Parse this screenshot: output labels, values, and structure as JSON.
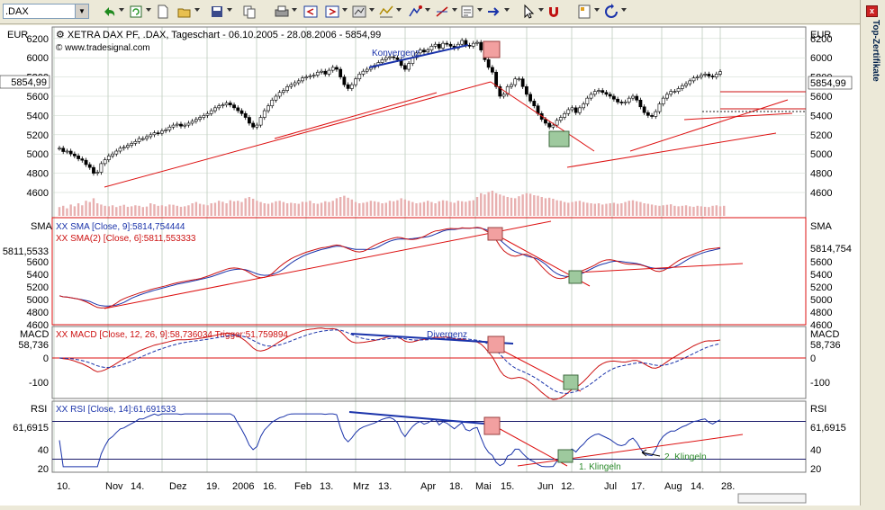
{
  "toolbar": {
    "symbol_value": ".DAX",
    "buttons": [
      "undo-icon",
      "refresh-icon",
      "new-icon",
      "open-icon",
      "save-icon",
      "copy-icon",
      "print-icon",
      "bar-prev-icon",
      "bar-next-icon",
      "chart-type-icon",
      "indicator-icon",
      "drawing-icon",
      "trendline-icon",
      "properties-icon",
      "arrow-icon",
      "cursor-icon",
      "magnet-icon",
      "template-icon",
      "redo-icon"
    ]
  },
  "side_panel": {
    "label": "Top-Zertifikate",
    "close_label": "x"
  },
  "colors": {
    "price": "#000000",
    "up_candle": "#ffffff",
    "down_candle": "#000000",
    "trend": "#dd1111",
    "blue_line": "#1a33aa",
    "grid": "#c8d4c8",
    "sell_marker": "#f2a0a0",
    "buy_marker": "#9ec99e",
    "volume": "#e8b0b0"
  },
  "chart_data": [
    {
      "type": "candlestick",
      "title": "XETRA DAX PF, .DAX, Tageschart - 06.10.2005 - 28.08.2006 - 5854,99",
      "source": "© www.tradesignal.com",
      "unit": "EUR",
      "ylim": [
        4550,
        6330
      ],
      "y_ticks": [
        4600,
        4800,
        5000,
        5200,
        5400,
        5600,
        5800,
        6000,
        6200
      ],
      "last_value_label": "5854,99",
      "last_value": 5854.99,
      "x_labels": [
        "10.",
        "Nov",
        "14.",
        "Dez",
        "19.",
        "2006",
        "16.",
        "Feb",
        "13.",
        "Mrz",
        "13.",
        "Apr",
        "18.",
        "Mai",
        "15.",
        "Jun",
        "12.",
        "Jul",
        "17.",
        "Aug",
        "14.",
        "28."
      ],
      "closes": [
        5060,
        5025,
        5030,
        5000,
        4980,
        4950,
        4935,
        4890,
        4860,
        4800,
        4810,
        4900,
        4940,
        4980,
        5000,
        5030,
        5060,
        5070,
        5090,
        5110,
        5130,
        5160,
        5160,
        5180,
        5200,
        5220,
        5215,
        5240,
        5250,
        5280,
        5300,
        5310,
        5290,
        5300,
        5320,
        5340,
        5360,
        5380,
        5400,
        5420,
        5450,
        5480,
        5500,
        5510,
        5530,
        5510,
        5480,
        5450,
        5420,
        5380,
        5320,
        5280,
        5300,
        5380,
        5450,
        5500,
        5560,
        5600,
        5640,
        5660,
        5700,
        5720,
        5740,
        5760,
        5790,
        5800,
        5810,
        5820,
        5850,
        5860,
        5830,
        5870,
        5900,
        5880,
        5800,
        5720,
        5680,
        5720,
        5780,
        5830,
        5860,
        5880,
        5900,
        5920,
        5950,
        5980,
        6000,
        6010,
        6000,
        5980,
        5920,
        5880,
        5940,
        6000,
        6050,
        6080,
        6060,
        6080,
        6120,
        6140,
        6100,
        6150,
        6140,
        6120,
        6100,
        6140,
        6180,
        6130,
        6120,
        6150,
        6160,
        6080,
        5980,
        5900,
        5850,
        5700,
        5600,
        5620,
        5700,
        5720,
        5780,
        5780,
        5700,
        5620,
        5550,
        5500,
        5420,
        5360,
        5320,
        5280,
        5300,
        5350,
        5380,
        5420,
        5460,
        5480,
        5430,
        5480,
        5520,
        5580,
        5620,
        5650,
        5660,
        5640,
        5620,
        5600,
        5570,
        5540,
        5530,
        5540,
        5580,
        5600,
        5560,
        5490,
        5430,
        5400,
        5390,
        5440,
        5520,
        5580,
        5620,
        5650,
        5650,
        5680,
        5710,
        5730,
        5760,
        5790,
        5800,
        5820,
        5830,
        5810,
        5800,
        5830,
        5855
      ],
      "volumes": [
        0.35,
        0.4,
        0.3,
        0.45,
        0.38,
        0.5,
        0.42,
        0.6,
        0.55,
        0.7,
        0.5,
        0.45,
        0.4,
        0.38,
        0.42,
        0.35,
        0.4,
        0.44,
        0.36,
        0.38,
        0.42,
        0.4,
        0.35,
        0.37,
        0.5,
        0.46,
        0.4,
        0.42,
        0.38,
        0.45,
        0.44,
        0.4,
        0.36,
        0.38,
        0.42,
        0.5,
        0.55,
        0.48,
        0.45,
        0.42,
        0.5,
        0.52,
        0.6,
        0.56,
        0.5,
        0.62,
        0.58,
        0.6,
        0.55,
        0.7,
        0.75,
        0.68,
        0.6,
        0.55,
        0.5,
        0.48,
        0.52,
        0.58,
        0.6,
        0.55,
        0.5,
        0.52,
        0.5,
        0.48,
        0.56,
        0.55,
        0.6,
        0.5,
        0.48,
        0.52,
        0.58,
        0.55,
        0.6,
        0.7,
        0.75,
        0.8,
        0.72,
        0.65,
        0.55,
        0.5,
        0.52,
        0.55,
        0.6,
        0.58,
        0.55,
        0.5,
        0.52,
        0.6,
        0.58,
        0.62,
        0.7,
        0.65,
        0.6,
        0.55,
        0.5,
        0.52,
        0.55,
        0.6,
        0.55,
        0.5,
        0.58,
        0.62,
        0.6,
        0.55,
        0.52,
        0.6,
        0.58,
        0.56,
        0.6,
        0.62,
        0.75,
        0.9,
        0.85,
        0.95,
        1.0,
        0.9,
        0.85,
        0.8,
        0.75,
        0.72,
        0.7,
        0.78,
        0.85,
        0.9,
        0.88,
        0.82,
        0.8,
        0.75,
        0.7,
        0.72,
        0.68,
        0.62,
        0.6,
        0.55,
        0.52,
        0.55,
        0.58,
        0.6,
        0.55,
        0.52,
        0.5,
        0.48,
        0.5,
        0.45,
        0.48,
        0.5,
        0.52,
        0.48,
        0.5,
        0.55,
        0.6,
        0.62,
        0.58,
        0.55,
        0.5,
        0.48,
        0.45,
        0.42,
        0.4,
        0.42,
        0.44,
        0.46,
        0.4,
        0.38,
        0.4,
        0.42,
        0.38,
        0.36,
        0.4,
        0.38,
        0.36,
        0.35,
        0.4,
        0.42,
        0.38,
        0.4
      ]
    },
    {
      "type": "line",
      "panel_label": "SMA",
      "series": [
        {
          "name": "XX SMA [Close, 9]:5814,754444",
          "value": 5814.754444,
          "color": "#1a33aa"
        },
        {
          "name": "XX SMA(2) [Close, 6]:5811,553333",
          "value": 5811.553333,
          "color": "#cc1111"
        }
      ],
      "ylim": [
        4550,
        6330
      ],
      "y_ticks": [
        4600,
        4800,
        5000,
        5200,
        5400,
        5600
      ],
      "right_value_label": "5814,754",
      "left_value_label": "5811,5533"
    },
    {
      "type": "line",
      "panel_label": "MACD",
      "series": [
        {
          "name": "XX MACD [Close, 12, 26, 9]:58,736034",
          "value": 58.736034,
          "color": "#cc1111"
        },
        {
          "name": "Trigger:51,759894",
          "value": 51.759894,
          "color": "#1a33aa"
        }
      ],
      "ylim": [
        -145,
        125
      ],
      "y_ticks": [
        0,
        -100
      ],
      "value_label": "58,736",
      "annotation": "Divergenz"
    },
    {
      "type": "line",
      "panel_label": "RSI",
      "series": [
        {
          "name": "XX RSI [Close, 14]:61,691533",
          "value": 61.691533,
          "color": "#1a33aa"
        }
      ],
      "ylim": [
        15,
        82
      ],
      "y_ticks": [
        20,
        40
      ],
      "levels": [
        70,
        30
      ],
      "value_label": "61,6915",
      "left_value_label": "61,6915",
      "annotations": [
        "1. Klingeln",
        "2. Klingeln"
      ]
    }
  ],
  "annotations": {
    "konvergenz": "Konvergenz"
  }
}
